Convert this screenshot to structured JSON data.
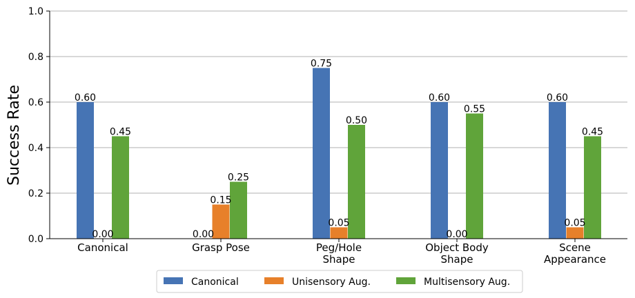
{
  "chart_data": {
    "type": "bar",
    "ylabel": "Success Rate",
    "ylim": [
      0,
      1.0
    ],
    "yticks": [
      "0.0",
      "0.2",
      "0.4",
      "0.6",
      "0.8",
      "1.0"
    ],
    "grid": "horizontal",
    "legend_position": "bottom-center",
    "categories": [
      [
        "Canonical"
      ],
      [
        "Grasp Pose"
      ],
      [
        "Peg/Hole",
        "Shape"
      ],
      [
        "Object Body",
        "Shape"
      ],
      [
        "Scene",
        "Appearance"
      ]
    ],
    "series": [
      {
        "name": "Canonical",
        "color": "#4674b4",
        "values": [
          0.6,
          0.0,
          0.75,
          0.6,
          0.6
        ],
        "labels": [
          "0.60",
          "0.00",
          "0.75",
          "0.60",
          "0.60"
        ]
      },
      {
        "name": "Unisensory Aug.",
        "color": "#e7802a",
        "values": [
          0.0,
          0.15,
          0.05,
          0.0,
          0.05
        ],
        "labels": [
          "0.00",
          "0.15",
          "0.05",
          "0.00",
          "0.05"
        ]
      },
      {
        "name": "Multisensory Aug.",
        "color": "#60a43a",
        "values": [
          0.45,
          0.25,
          0.5,
          0.55,
          0.45
        ],
        "labels": [
          "0.45",
          "0.25",
          "0.50",
          "0.55",
          "0.45"
        ]
      }
    ]
  }
}
